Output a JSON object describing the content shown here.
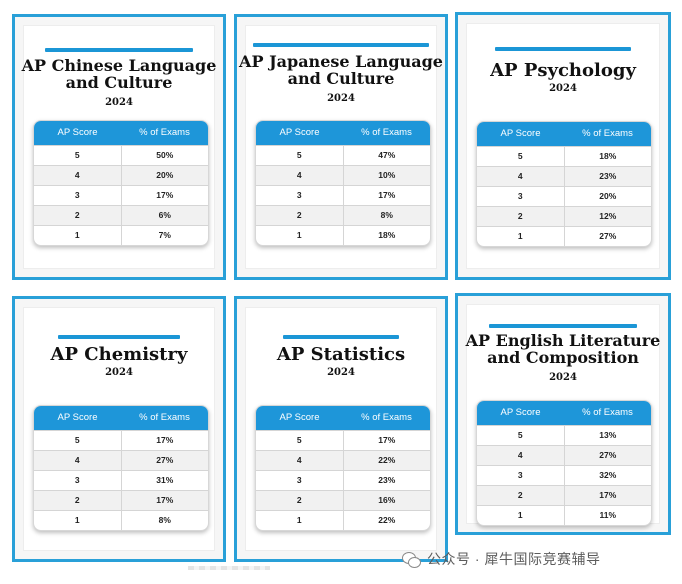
{
  "cards": [
    {
      "title_line1": "AP Chinese Language",
      "title_line2": "and Culture",
      "year": "2024",
      "header_score": "AP Score",
      "header_percent": "% of Exams",
      "rows": [
        {
          "score": "5",
          "percent": "50%"
        },
        {
          "score": "4",
          "percent": "20%"
        },
        {
          "score": "3",
          "percent": "17%"
        },
        {
          "score": "2",
          "percent": "6%"
        },
        {
          "score": "1",
          "percent": "7%"
        }
      ]
    },
    {
      "title_line1": "AP Japanese Language",
      "title_line2": "and Culture",
      "year": "2024",
      "header_score": "AP Score",
      "header_percent": "% of Exams",
      "rows": [
        {
          "score": "5",
          "percent": "47%"
        },
        {
          "score": "4",
          "percent": "10%"
        },
        {
          "score": "3",
          "percent": "17%"
        },
        {
          "score": "2",
          "percent": "8%"
        },
        {
          "score": "1",
          "percent": "18%"
        }
      ]
    },
    {
      "title_line1": "AP Psychology",
      "title_line2": "",
      "year": "2024",
      "header_score": "AP Score",
      "header_percent": "% of Exams",
      "rows": [
        {
          "score": "5",
          "percent": "18%"
        },
        {
          "score": "4",
          "percent": "23%"
        },
        {
          "score": "3",
          "percent": "20%"
        },
        {
          "score": "2",
          "percent": "12%"
        },
        {
          "score": "1",
          "percent": "27%"
        }
      ]
    },
    {
      "title_line1": "AP Chemistry",
      "title_line2": "",
      "year": "2024",
      "header_score": "AP Score",
      "header_percent": "% of Exams",
      "rows": [
        {
          "score": "5",
          "percent": "17%"
        },
        {
          "score": "4",
          "percent": "27%"
        },
        {
          "score": "3",
          "percent": "31%"
        },
        {
          "score": "2",
          "percent": "17%"
        },
        {
          "score": "1",
          "percent": "8%"
        }
      ]
    },
    {
      "title_line1": "AP Statistics",
      "title_line2": "",
      "year": "2024",
      "header_score": "AP Score",
      "header_percent": "% of Exams",
      "rows": [
        {
          "score": "5",
          "percent": "17%"
        },
        {
          "score": "4",
          "percent": "22%"
        },
        {
          "score": "3",
          "percent": "23%"
        },
        {
          "score": "2",
          "percent": "16%"
        },
        {
          "score": "1",
          "percent": "22%"
        }
      ]
    },
    {
      "title_line1": "AP English Literature",
      "title_line2": "and Composition",
      "year": "2024",
      "header_score": "AP Score",
      "header_percent": "% of Exams",
      "rows": [
        {
          "score": "5",
          "percent": "13%"
        },
        {
          "score": "4",
          "percent": "27%"
        },
        {
          "score": "3",
          "percent": "32%"
        },
        {
          "score": "2",
          "percent": "17%"
        },
        {
          "score": "1",
          "percent": "11%"
        }
      ]
    }
  ],
  "watermark": {
    "icon": "wechat-logo-icon",
    "text": "公众号 · 犀牛国际竞赛辅导"
  },
  "colors": {
    "accent": "#1e96d9",
    "border": "#29a0d8"
  }
}
